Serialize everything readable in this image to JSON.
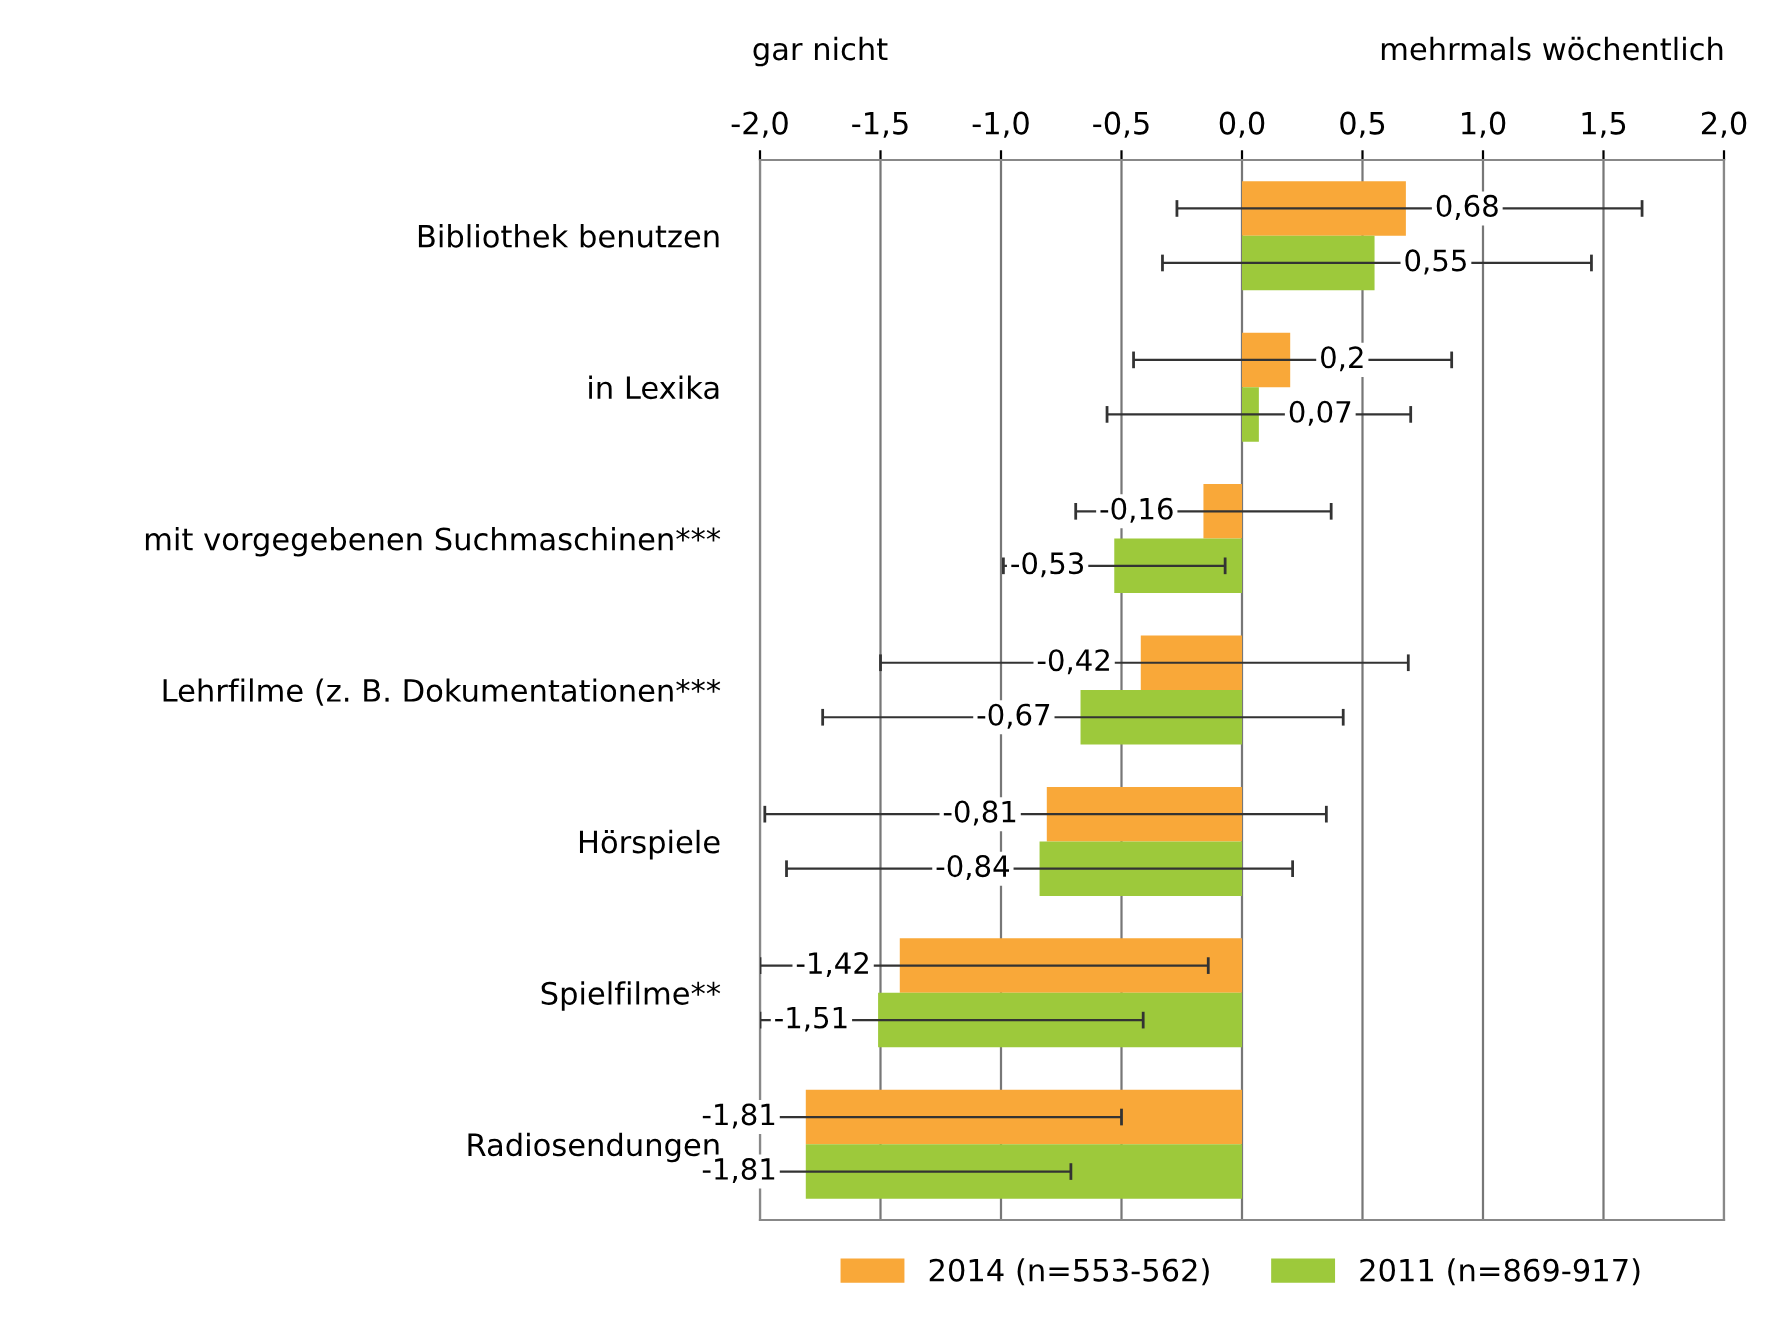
{
  "chart_data": {
    "type": "bar",
    "orientation": "horizontal",
    "categories": [
      "Bibliothek benutzen",
      "in Lexika",
      "mit vorgegebenen Suchmaschinen***",
      "Lehrfilme (z. B. Dokumentationen***",
      "Hörspiele",
      "Spielfilme**",
      "Radiosendungen"
    ],
    "series": [
      {
        "name": "2014 (n=553-562)",
        "color": "#f9a839",
        "values": [
          0.68,
          0.2,
          -0.16,
          -0.42,
          -0.81,
          -1.42,
          -1.81
        ],
        "value_labels": [
          "0,68",
          "0,2",
          "-0,16",
          "-0,42",
          "-0,81",
          "-1,42",
          "-1,81"
        ],
        "errors": [
          [
            -0.27,
            1.66
          ],
          [
            -0.45,
            0.87
          ],
          [
            -0.69,
            0.37
          ],
          [
            -1.5,
            0.69
          ],
          [
            -1.98,
            0.35
          ],
          [
            -2.0,
            -0.14
          ],
          [
            -2.0,
            -0.5
          ]
        ]
      },
      {
        "name": "2011 (n=869-917)",
        "color": "#9dc93b",
        "values": [
          0.55,
          0.07,
          -0.53,
          -0.67,
          -0.84,
          -1.51,
          -1.81
        ],
        "value_labels": [
          "0,55",
          "0,07",
          "-0,53",
          "-0,67",
          "-0,84",
          "-1,51",
          "-1,81"
        ],
        "errors": [
          [
            -0.33,
            1.45
          ],
          [
            -0.56,
            0.7
          ],
          [
            -0.99,
            -0.07
          ],
          [
            -1.74,
            0.42
          ],
          [
            -1.89,
            0.21
          ],
          [
            -2.0,
            -0.41
          ],
          [
            -2.0,
            -0.71
          ]
        ]
      }
    ],
    "xlim": [
      -2,
      2
    ],
    "xticks": [
      {
        "value": -2,
        "label": "-2,0"
      },
      {
        "value": -1.5,
        "label": "-1,5"
      },
      {
        "value": -1,
        "label": "-1,0"
      },
      {
        "value": -0.5,
        "label": "-0,5"
      },
      {
        "value": 0,
        "label": "0,0"
      },
      {
        "value": 0.5,
        "label": "0,5"
      },
      {
        "value": 1,
        "label": "1,0"
      },
      {
        "value": 1.5,
        "label": "1,5"
      },
      {
        "value": 2,
        "label": "2,0"
      }
    ],
    "annotations": [
      "gar nicht",
      "mehrmals wöchentlich"
    ],
    "grid": "x",
    "legend": "bottom"
  }
}
